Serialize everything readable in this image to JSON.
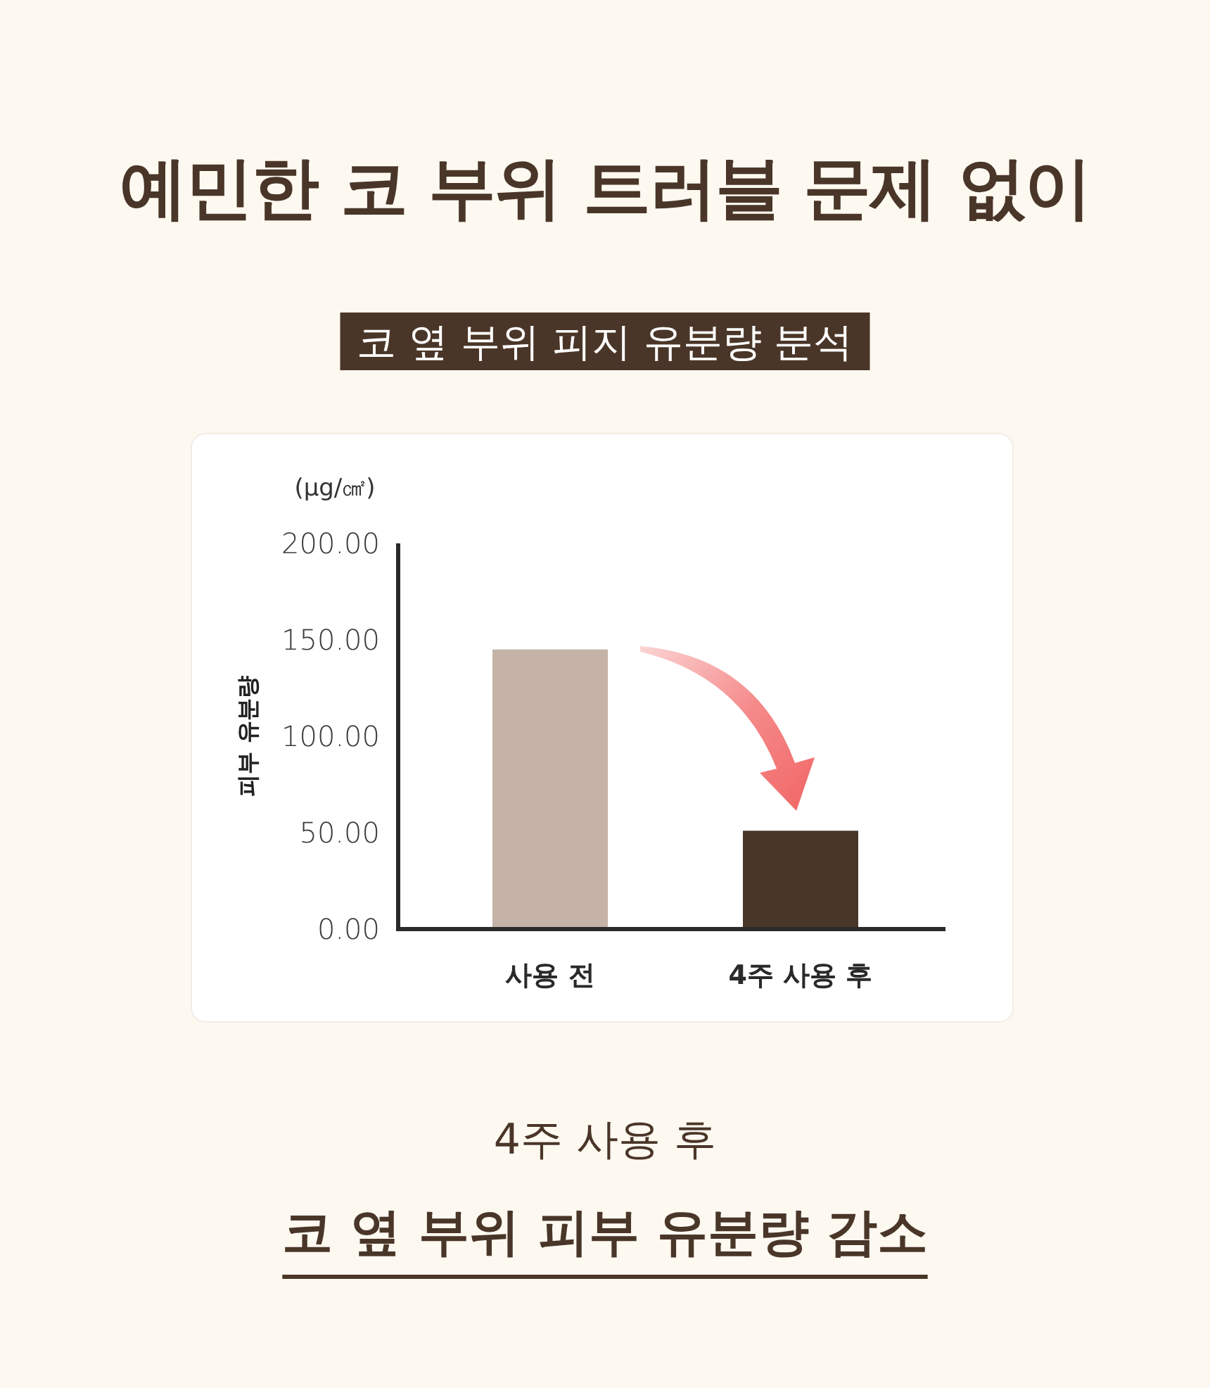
{
  "chart_data": {
    "type": "bar",
    "title": "예민한 코 부위 트러블 문제 없이",
    "subtitle": "코 옆 부위 피지 유분량 분석",
    "ylabel": "피부 유분량",
    "categories": [
      "사용 전",
      "4주 사용 후"
    ],
    "values": [
      145,
      51
    ],
    "colors": [
      "#c4b3a6",
      "#4a3628"
    ],
    "ylim": [
      0,
      200
    ],
    "yticks": [
      {
        "value": 0,
        "label": "0.00"
      },
      {
        "value": 50,
        "label": "50.00"
      },
      {
        "value": 100,
        "label": "100.00"
      },
      {
        "value": 150,
        "label": "150.00"
      },
      {
        "value": 200,
        "label": "200.00"
      }
    ],
    "annotations": [
      "(µg/㎠)",
      "4주 사용 후",
      "코 옆 부위 피부 유분량 감소"
    ]
  }
}
